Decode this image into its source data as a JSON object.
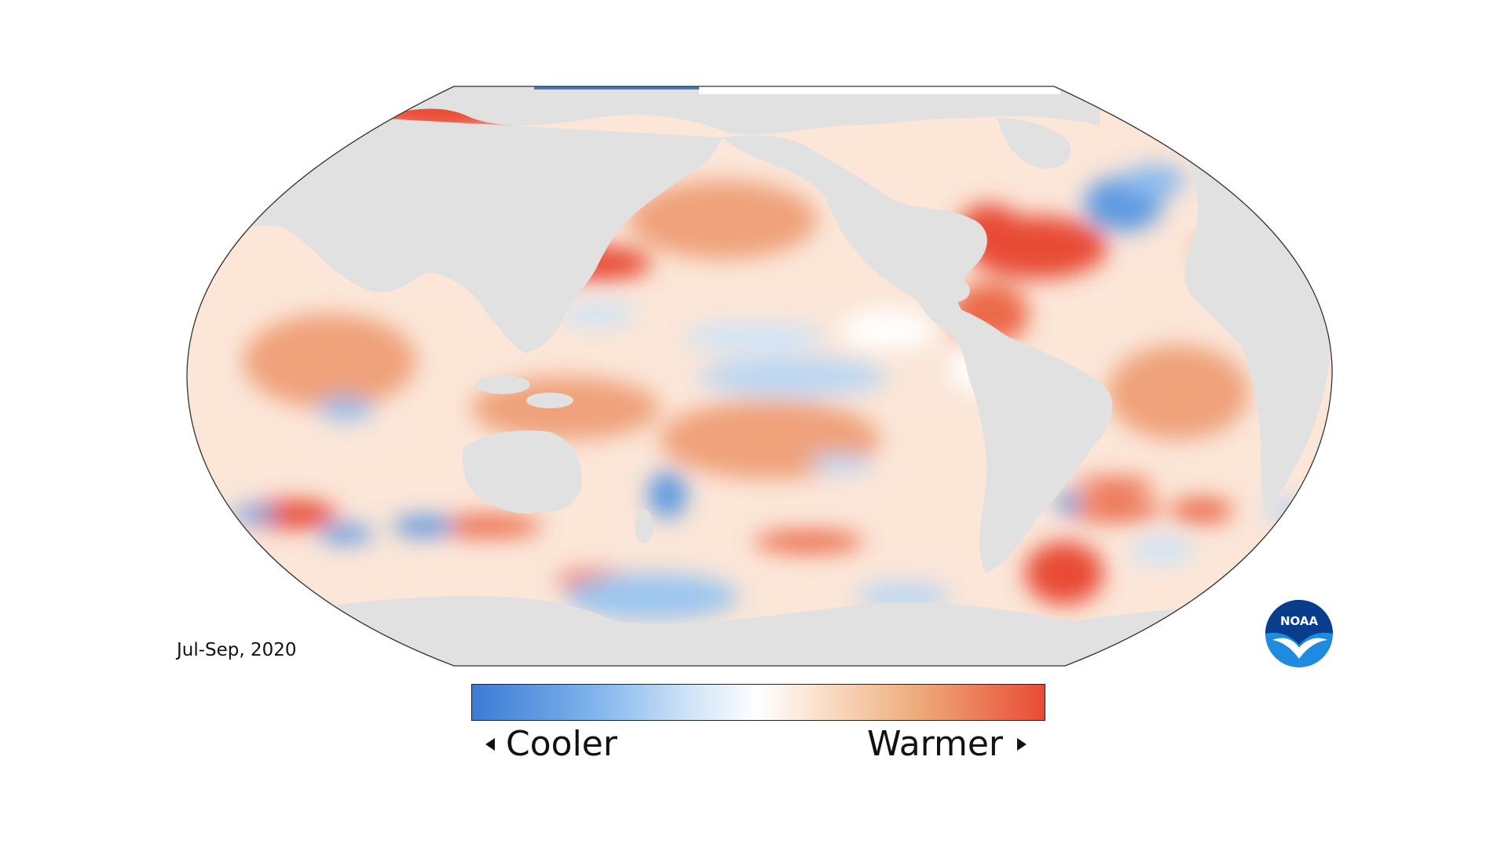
{
  "map": {
    "period": "Jul-Sep, 2020",
    "projection": "robinson",
    "land_color": "#e1e1e1",
    "ocean_base_color": "#fbe6d8"
  },
  "legend": {
    "low_label": "Cooler",
    "high_label": "Warmer",
    "colors": {
      "cool_end": "#3a7bd5",
      "neutral": "#ffffff",
      "warm_end": "#e84b35"
    }
  },
  "logo": {
    "text": "NOAA",
    "primary": "#0a3c8c",
    "secondary": "#1d8be0"
  }
}
